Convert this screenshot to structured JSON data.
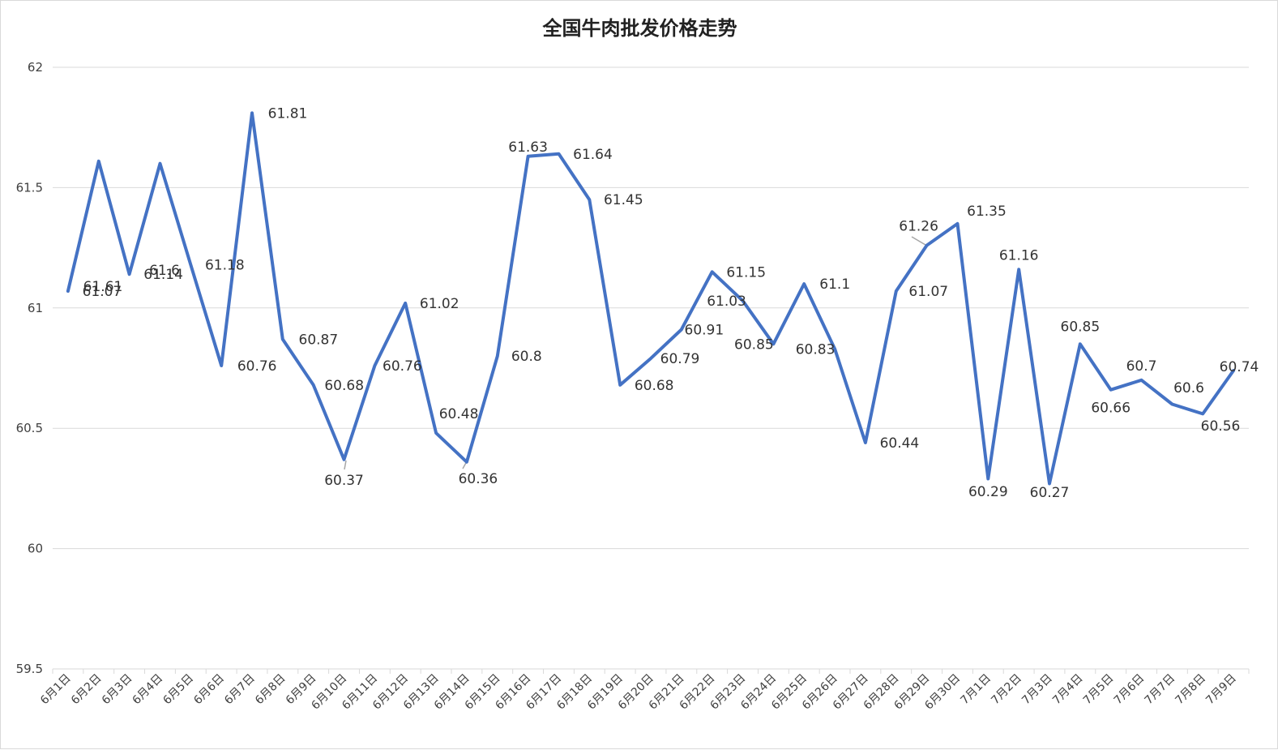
{
  "chart_data": {
    "type": "line",
    "title": "全国牛肉批发价格走势",
    "xlabel": "",
    "ylabel": "",
    "ylim": [
      59.5,
      62
    ],
    "yticks": [
      "59.5",
      "60",
      "60.5",
      "61",
      "61.5",
      "62"
    ],
    "grid": true,
    "legend": "none",
    "line_color": "#4472C4",
    "grid_color": "#d9d9d9",
    "categories": [
      "6月1日",
      "6月2日",
      "6月3日",
      "6月4日",
      "6月5日",
      "6月6日",
      "6月7日",
      "6月8日",
      "6月9日",
      "6月10日",
      "6月11日",
      "6月12日",
      "6月13日",
      "6月14日",
      "6月15日",
      "6月16日",
      "6月17日",
      "6月18日",
      "6月19日",
      "6月20日",
      "6月21日",
      "6月22日",
      "6月23日",
      "6月24日",
      "6月25日",
      "6月26日",
      "6月27日",
      "6月28日",
      "6月29日",
      "6月30日",
      "7月1日",
      "7月2日",
      "7月3日",
      "7月4日",
      "7月5日",
      "7月6日",
      "7月7日",
      "7月8日",
      "7月9日"
    ],
    "values": [
      61.07,
      61.61,
      61.14,
      61.6,
      61.18,
      60.76,
      61.81,
      60.87,
      60.68,
      60.37,
      60.76,
      61.02,
      60.48,
      60.36,
      60.8,
      61.63,
      61.64,
      61.45,
      60.68,
      60.79,
      60.91,
      61.15,
      61.03,
      60.85,
      61.1,
      60.83,
      60.44,
      61.07,
      61.26,
      61.35,
      60.29,
      61.16,
      60.27,
      60.85,
      60.66,
      60.7,
      60.6,
      60.56,
      60.74
    ],
    "data_labels": [
      "61.07",
      "61.61",
      "61.14",
      "61.6",
      "61.18",
      "60.76",
      "61.81",
      "60.87",
      "60.68",
      "60.37",
      "60.76",
      "61.02",
      "60.48",
      "60.36",
      "60.8",
      "61.63",
      "61.64",
      "61.45",
      "60.68",
      "60.79",
      "60.91",
      "61.15",
      "61.03",
      "60.85",
      "61.1",
      "60.83",
      "60.44",
      "61.07",
      "61.26",
      "61.35",
      "60.29",
      "61.16",
      "60.27",
      "60.85",
      "60.66",
      "60.7",
      "60.6",
      "60.56",
      "60.74"
    ]
  }
}
